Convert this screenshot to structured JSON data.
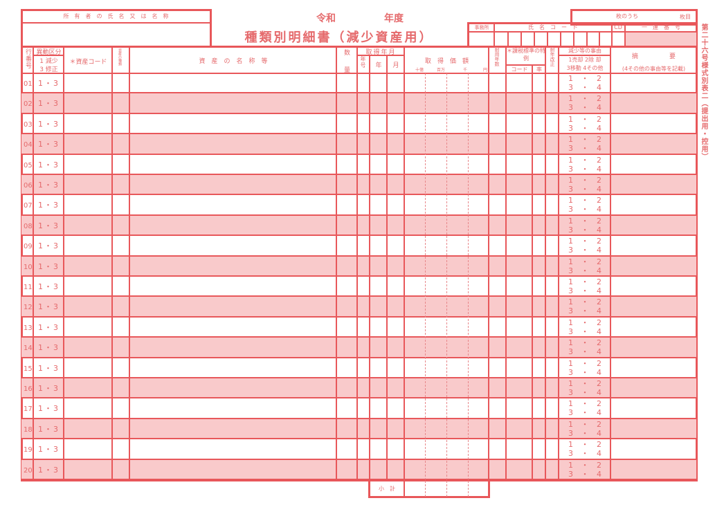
{
  "owner": {
    "label": "所　有　者　の　氏　名　又　は　名　称",
    "value": ""
  },
  "title": {
    "era": "令和　　　　　年度",
    "main": "種類別明細書（減少資産用）"
  },
  "sheet": {
    "of_label": "枚のうち",
    "page_label": "枚目"
  },
  "office_codes": {
    "office": "事務所",
    "name_code": "氏　名　コ　ー　ド",
    "cd": "CD",
    "serial": "一　連　番　号"
  },
  "form_id": "第二十六号様式別表二（提出用・控用）",
  "headers": {
    "line_no": "行番号",
    "change_type": "異動区分",
    "change_type_options": [
      "1 減少",
      "3 修正"
    ],
    "asset_code": "＊資産コード",
    "asset_kind": "資産の種類",
    "asset_name": "資　産　の　名　称　等",
    "quantity": [
      "数",
      "量"
    ],
    "acq_date": "取得年月",
    "era_name": "年号",
    "year": "年",
    "month": "月",
    "acq_cost": "取　得　価　額",
    "cost_units": [
      "十億",
      "百万",
      "千",
      "円"
    ],
    "useful_life": "耐用年数",
    "tax_special": "＊課税標準の特例",
    "tax_code": "コード",
    "tax_rate": "率",
    "life_revision": "耐年改正",
    "reason": "減少等の事由",
    "reason_options": [
      "1売却 2除 却",
      "3移動 4その他"
    ],
    "summary": "摘　　　　　要",
    "summary_note": "(4その他の事由等を記載)"
  },
  "rows": [
    {
      "no": "01",
      "type": "1・3",
      "reason": [
        "1 ・ 2",
        "3 ・ 4"
      ]
    },
    {
      "no": "02",
      "type": "1・3",
      "reason": [
        "1 ・ 2",
        "3 ・ 4"
      ]
    },
    {
      "no": "03",
      "type": "1・3",
      "reason": [
        "1 ・ 2",
        "3 ・ 4"
      ]
    },
    {
      "no": "04",
      "type": "1・3",
      "reason": [
        "1 ・ 2",
        "3 ・ 4"
      ]
    },
    {
      "no": "05",
      "type": "1・3",
      "reason": [
        "1 ・ 2",
        "3 ・ 4"
      ]
    },
    {
      "no": "06",
      "type": "1・3",
      "reason": [
        "1 ・ 2",
        "3 ・ 4"
      ]
    },
    {
      "no": "07",
      "type": "1・3",
      "reason": [
        "1 ・ 2",
        "3 ・ 4"
      ]
    },
    {
      "no": "08",
      "type": "1・3",
      "reason": [
        "1 ・ 2",
        "3 ・ 4"
      ]
    },
    {
      "no": "09",
      "type": "1・3",
      "reason": [
        "1 ・ 2",
        "3 ・ 4"
      ]
    },
    {
      "no": "10",
      "type": "1・3",
      "reason": [
        "1 ・ 2",
        "3 ・ 4"
      ]
    },
    {
      "no": "11",
      "type": "1・3",
      "reason": [
        "1 ・ 2",
        "3 ・ 4"
      ]
    },
    {
      "no": "12",
      "type": "1・3",
      "reason": [
        "1 ・ 2",
        "3 ・ 4"
      ]
    },
    {
      "no": "13",
      "type": "1・3",
      "reason": [
        "1 ・ 2",
        "3 ・ 4"
      ]
    },
    {
      "no": "14",
      "type": "1・3",
      "reason": [
        "1 ・ 2",
        "3 ・ 4"
      ]
    },
    {
      "no": "15",
      "type": "1・3",
      "reason": [
        "1 ・ 2",
        "3 ・ 4"
      ]
    },
    {
      "no": "16",
      "type": "1・3",
      "reason": [
        "1 ・ 2",
        "3 ・ 4"
      ]
    },
    {
      "no": "17",
      "type": "1・3",
      "reason": [
        "1 ・ 2",
        "3 ・ 4"
      ]
    },
    {
      "no": "18",
      "type": "1・3",
      "reason": [
        "1 ・ 2",
        "3 ・ 4"
      ]
    },
    {
      "no": "19",
      "type": "1・3",
      "reason": [
        "1 ・ 2",
        "3 ・ 4"
      ]
    },
    {
      "no": "20",
      "type": "1・3",
      "reason": [
        "1 ・ 2",
        "3 ・ 4"
      ]
    }
  ],
  "subtotal_label": "小　計",
  "colors": {
    "line": "#e8575a",
    "shade": "#f9cacb",
    "text": "#e56a6c"
  }
}
